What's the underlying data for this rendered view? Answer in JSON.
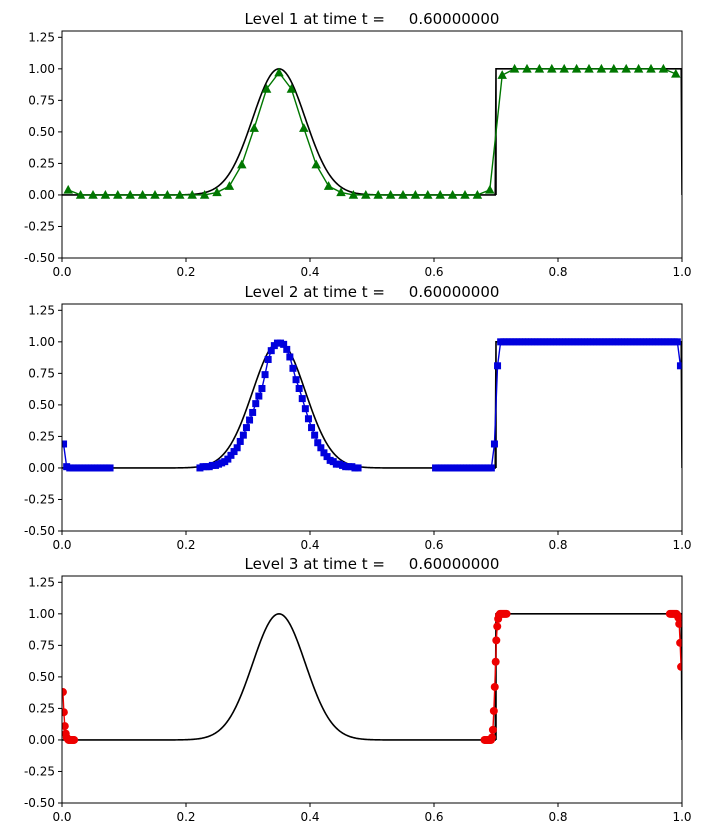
{
  "chart_data": [
    {
      "type": "line",
      "title": "Level 1 at time t =     0.60000000",
      "xlim": [
        0,
        1
      ],
      "ylim": [
        -0.5,
        1.3
      ],
      "xticks": [
        "0.0",
        "0.2",
        "0.4",
        "0.6",
        "0.8",
        "1.0"
      ],
      "yticks": [
        "-0.50",
        "-0.25",
        "0.00",
        "0.25",
        "0.50",
        "0.75",
        "1.00",
        "1.25"
      ],
      "exact_color": "#000000",
      "series": [
        {
          "marker": "triangle",
          "color": "#007700",
          "x": [
            0.01,
            0.03,
            0.05,
            0.07,
            0.09,
            0.11,
            0.13,
            0.15,
            0.17,
            0.19,
            0.21,
            0.23,
            0.25,
            0.27,
            0.29,
            0.31,
            0.33,
            0.35,
            0.37,
            0.39,
            0.41,
            0.43,
            0.45,
            0.47,
            0.49,
            0.51,
            0.53,
            0.55,
            0.57,
            0.59,
            0.61,
            0.63,
            0.65,
            0.67,
            0.69,
            0.71,
            0.73,
            0.75,
            0.77,
            0.79,
            0.81,
            0.83,
            0.85,
            0.87,
            0.89,
            0.91,
            0.93,
            0.95,
            0.97,
            0.99
          ],
          "y": [
            0.04,
            0.0,
            0.0,
            0.0,
            0.0,
            0.0,
            0.0,
            0.0,
            0.0,
            0.0,
            0.0,
            0.0,
            0.02,
            0.07,
            0.24,
            0.53,
            0.84,
            0.97,
            0.84,
            0.53,
            0.24,
            0.07,
            0.02,
            0.0,
            0.0,
            0.0,
            0.0,
            0.0,
            0.0,
            0.0,
            0.0,
            0.0,
            0.0,
            0.0,
            0.04,
            0.95,
            1.0,
            1.0,
            1.0,
            1.0,
            1.0,
            1.0,
            1.0,
            1.0,
            1.0,
            1.0,
            1.0,
            1.0,
            1.0,
            0.96
          ]
        }
      ]
    },
    {
      "type": "line",
      "title": "Level 2 at time t =     0.60000000",
      "xlim": [
        0,
        1
      ],
      "ylim": [
        -0.5,
        1.3
      ],
      "xticks": [
        "0.0",
        "0.2",
        "0.4",
        "0.6",
        "0.8",
        "1.0"
      ],
      "yticks": [
        "-0.50",
        "-0.25",
        "0.00",
        "0.25",
        "0.50",
        "0.75",
        "1.00",
        "1.25"
      ],
      "exact_color": "#000000",
      "series": [
        {
          "marker": "square",
          "color": "#0000dd",
          "segments": [
            {
              "x": [
                0.0025,
                0.0075,
                0.0125,
                0.0175,
                0.0225,
                0.0275,
                0.0325,
                0.0375,
                0.0425,
                0.0475,
                0.0525,
                0.0575,
                0.0625,
                0.0675,
                0.0725,
                0.0775
              ],
              "y": [
                0.19,
                0.01,
                0.0,
                0.0,
                0.0,
                0.0,
                0.0,
                0.0,
                0.0,
                0.0,
                0.0,
                0.0,
                0.0,
                0.0,
                0.0,
                0.0
              ]
            },
            {
              "x": [
                0.2225,
                0.2275,
                0.2325,
                0.2375,
                0.2425,
                0.2475,
                0.2525,
                0.2575,
                0.2625,
                0.2675,
                0.2725,
                0.2775,
                0.2825,
                0.2875,
                0.2925,
                0.2975,
                0.3025,
                0.3075,
                0.3125,
                0.3175,
                0.3225,
                0.3275,
                0.3325,
                0.3375,
                0.3425,
                0.3475,
                0.3525,
                0.3575,
                0.3625,
                0.3675,
                0.3725,
                0.3775,
                0.3825,
                0.3875,
                0.3925,
                0.3975,
                0.4025,
                0.4075,
                0.4125,
                0.4175,
                0.4225,
                0.4275,
                0.4325,
                0.4375,
                0.4425,
                0.4475,
                0.4525,
                0.4575,
                0.4625,
                0.4675,
                0.4725,
                0.4775
              ],
              "y": [
                0.0,
                0.01,
                0.01,
                0.01,
                0.02,
                0.02,
                0.03,
                0.04,
                0.05,
                0.07,
                0.1,
                0.13,
                0.16,
                0.21,
                0.26,
                0.32,
                0.38,
                0.44,
                0.51,
                0.57,
                0.63,
                0.74,
                0.86,
                0.93,
                0.97,
                0.99,
                0.99,
                0.98,
                0.94,
                0.88,
                0.79,
                0.7,
                0.63,
                0.55,
                0.47,
                0.39,
                0.32,
                0.26,
                0.2,
                0.16,
                0.12,
                0.09,
                0.06,
                0.05,
                0.03,
                0.03,
                0.02,
                0.01,
                0.01,
                0.01,
                0.0,
                0.0
              ]
            },
            {
              "x": [
                0.6025,
                0.6075,
                0.6125,
                0.6175,
                0.6225,
                0.6275,
                0.6325,
                0.6375,
                0.6425,
                0.6475,
                0.6525,
                0.6575,
                0.6625,
                0.6675,
                0.6725,
                0.6775,
                0.6825,
                0.6875,
                0.6925,
                0.6975,
                0.7025,
                0.7075,
                0.7125,
                0.7175,
                0.7225,
                0.7275,
                0.7325,
                0.7375,
                0.7425,
                0.7475,
                0.7525,
                0.7575,
                0.7625,
                0.7675,
                0.7725,
                0.7775,
                0.7825,
                0.7875,
                0.7925,
                0.7975,
                0.8025,
                0.8075,
                0.8125,
                0.8175,
                0.8225,
                0.8275,
                0.8325,
                0.8375,
                0.8425,
                0.8475,
                0.8525,
                0.8575,
                0.8625,
                0.8675,
                0.8725,
                0.8775,
                0.8825,
                0.8875,
                0.8925,
                0.8975,
                0.9025,
                0.9075,
                0.9125,
                0.9175,
                0.9225,
                0.9275,
                0.9325,
                0.9375,
                0.9425,
                0.9475,
                0.9525,
                0.9575,
                0.9625,
                0.9675,
                0.9725,
                0.9775,
                0.9825,
                0.9875,
                0.9925,
                0.9975
              ],
              "y": [
                0.0,
                0.0,
                0.0,
                0.0,
                0.0,
                0.0,
                0.0,
                0.0,
                0.0,
                0.0,
                0.0,
                0.0,
                0.0,
                0.0,
                0.0,
                0.0,
                0.0,
                0.0,
                0.0,
                0.19,
                0.81,
                1.0,
                1.0,
                1.0,
                1.0,
                1.0,
                1.0,
                1.0,
                1.0,
                1.0,
                1.0,
                1.0,
                1.0,
                1.0,
                1.0,
                1.0,
                1.0,
                1.0,
                1.0,
                1.0,
                1.0,
                1.0,
                1.0,
                1.0,
                1.0,
                1.0,
                1.0,
                1.0,
                1.0,
                1.0,
                1.0,
                1.0,
                1.0,
                1.0,
                1.0,
                1.0,
                1.0,
                1.0,
                1.0,
                1.0,
                1.0,
                1.0,
                1.0,
                1.0,
                1.0,
                1.0,
                1.0,
                1.0,
                1.0,
                1.0,
                1.0,
                1.0,
                1.0,
                1.0,
                1.0,
                1.0,
                1.0,
                1.0,
                1.0,
                0.81
              ]
            }
          ]
        }
      ]
    },
    {
      "type": "line",
      "title": "Level 3 at time t =     0.60000000",
      "xlim": [
        0,
        1
      ],
      "ylim": [
        -0.5,
        1.3
      ],
      "xticks": [
        "0.0",
        "0.2",
        "0.4",
        "0.6",
        "0.8",
        "1.0"
      ],
      "yticks": [
        "-0.50",
        "-0.25",
        "0.00",
        "0.25",
        "0.50",
        "0.75",
        "1.00",
        "1.25"
      ],
      "exact_color": "#000000",
      "series": [
        {
          "marker": "circle",
          "color": "#ee0000",
          "segments": [
            {
              "x": [
                0.0015,
                0.003,
                0.0045,
                0.006,
                0.0075,
                0.009,
                0.0105,
                0.012,
                0.0135,
                0.015,
                0.0165,
                0.018,
                0.0195
              ],
              "y": [
                0.38,
                0.22,
                0.11,
                0.05,
                0.02,
                0.01,
                0.0,
                0.0,
                0.0,
                0.0,
                0.0,
                0.0,
                0.0
              ]
            },
            {
              "x": [
                0.6815,
                0.683,
                0.6845,
                0.686,
                0.6875,
                0.689,
                0.6905,
                0.692,
                0.6935,
                0.695,
                0.6965,
                0.698,
                0.6995,
                0.7005,
                0.702,
                0.7035,
                0.705,
                0.7065,
                0.708,
                0.7095,
                0.711,
                0.7125,
                0.714,
                0.7155,
                0.717
              ],
              "y": [
                0.0,
                0.0,
                0.0,
                0.0,
                0.0,
                0.0,
                0.0,
                0.0,
                0.02,
                0.08,
                0.23,
                0.42,
                0.62,
                0.79,
                0.9,
                0.96,
                0.99,
                1.0,
                1.0,
                1.0,
                1.0,
                1.0,
                1.0,
                1.0,
                1.0
              ]
            },
            {
              "x": [
                0.9805,
                0.982,
                0.9835,
                0.985,
                0.9865,
                0.988,
                0.9895,
                0.991,
                0.9925,
                0.994,
                0.9955,
                0.997,
                0.9985
              ],
              "y": [
                1.0,
                1.0,
                1.0,
                1.0,
                1.0,
                1.0,
                1.0,
                1.0,
                0.99,
                0.97,
                0.92,
                0.77,
                0.58
              ]
            }
          ]
        }
      ]
    }
  ]
}
